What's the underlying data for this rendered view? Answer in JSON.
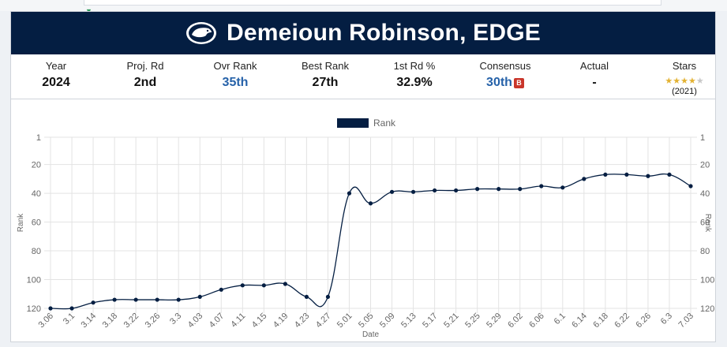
{
  "header": {
    "title": "Demeioun Robinson, EDGE",
    "logo_icon": "nittany-lion-logo-icon",
    "background": "#041e42"
  },
  "stats": {
    "year": {
      "label": "Year",
      "value": "2024"
    },
    "proj_rd": {
      "label": "Proj. Rd",
      "value": "2nd"
    },
    "ovr_rank": {
      "label": "Ovr Rank",
      "value": "35th"
    },
    "best_rank": {
      "label": "Best Rank",
      "value": "27th"
    },
    "first_rd_pct": {
      "label": "1st Rd %",
      "value": "32.9%"
    },
    "consensus": {
      "label": "Consensus",
      "value": "30th",
      "badge_icon": "team-logo-icon"
    },
    "actual": {
      "label": "Actual",
      "value": "-"
    },
    "stars": {
      "label": "Stars",
      "rating": 4,
      "max": 5,
      "year": "(2021)"
    }
  },
  "chart_data": {
    "type": "line",
    "legend": "top",
    "xlabel": "Date",
    "ylabel": "Rank",
    "ylim": [
      1,
      120
    ],
    "y_reversed": true,
    "y_ticks": [
      1,
      20,
      40,
      60,
      80,
      100,
      120
    ],
    "y_ticks_right": [
      1,
      20,
      40,
      60,
      80,
      100,
      120
    ],
    "grid": true,
    "x_ticks": [
      "3.06",
      "3.1",
      "3.14",
      "3.18",
      "3.22",
      "3.26",
      "3.3",
      "4.03",
      "4.07",
      "4.11",
      "4.15",
      "4.19",
      "4.23",
      "4.27",
      "5.01",
      "5.05",
      "5.09",
      "5.13",
      "5.17",
      "5.21",
      "5.25",
      "5.29",
      "6.02",
      "6.06",
      "6.1",
      "6.14",
      "6.18",
      "6.22",
      "6.26",
      "6.3",
      "7.03"
    ],
    "series": [
      {
        "name": "Rank",
        "color": "#041e42",
        "x": [
          "3.06",
          "3.1",
          "3.14",
          "3.18",
          "3.22",
          "3.26",
          "3.3",
          "4.03",
          "4.07",
          "4.11",
          "4.15",
          "4.19",
          "4.23",
          "4.27",
          "5.01",
          "5.05",
          "5.09",
          "5.13",
          "5.17",
          "5.21",
          "5.25",
          "5.29",
          "6.02",
          "6.06",
          "6.1",
          "6.14",
          "6.18",
          "6.22",
          "6.26",
          "6.3",
          "7.03"
        ],
        "values": [
          120,
          120,
          116,
          114,
          114,
          114,
          114,
          112,
          107,
          104,
          104,
          103,
          112,
          112,
          40,
          47,
          39,
          39,
          38,
          38,
          37,
          37,
          37,
          35,
          36,
          30,
          27,
          27,
          28,
          27,
          35
        ]
      }
    ]
  }
}
